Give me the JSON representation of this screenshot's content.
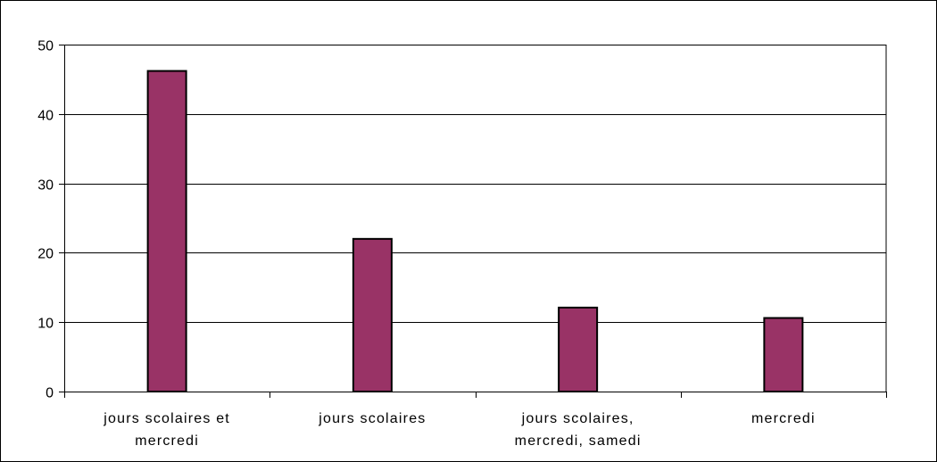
{
  "chart_data": {
    "type": "bar",
    "title": "",
    "xlabel": "",
    "ylabel": "",
    "categories": [
      "jours scolaires et mercredi",
      "jours scolaires",
      "jours scolaires, mercredi, samedi",
      "mercredi"
    ],
    "category_label_lines": [
      [
        "jours scolaires et",
        "mercredi"
      ],
      [
        "jours scolaires"
      ],
      [
        "jours scolaires,",
        "mercredi, samedi"
      ],
      [
        "mercredi"
      ]
    ],
    "values": [
      46.2,
      22.0,
      12.1,
      10.6
    ],
    "ylim": [
      0,
      50
    ],
    "yticks": [
      "0",
      "10",
      "20",
      "30",
      "40",
      "50"
    ],
    "grid": true,
    "legend": "none",
    "colors": {
      "bar_fill": "#993366",
      "bar_stroke": "#000000",
      "grid": "#000000",
      "frame": "#000000"
    }
  }
}
